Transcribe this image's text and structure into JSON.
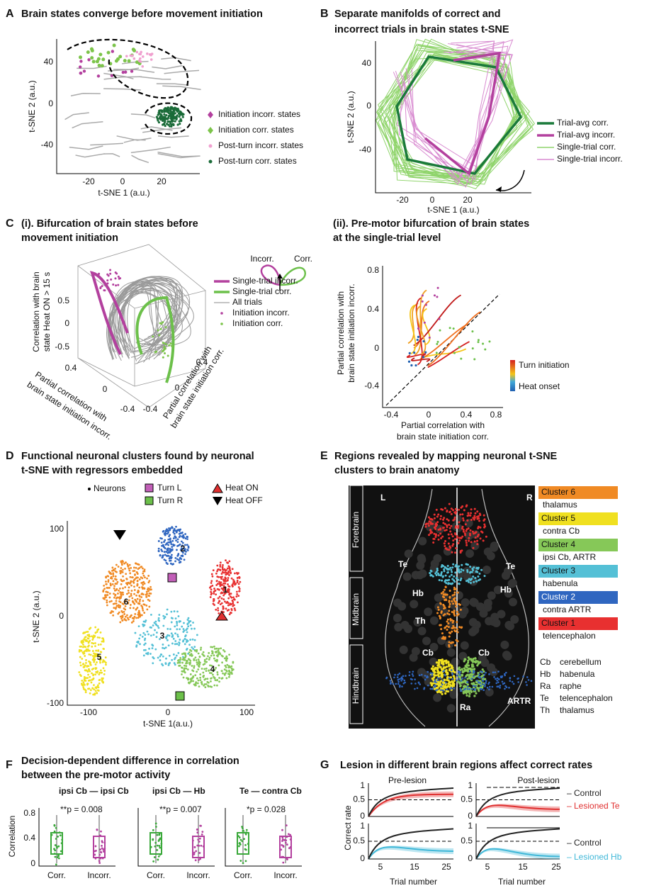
{
  "panel_a": {
    "letter": "A",
    "title": "Brain states converge before movement initiation",
    "y_label": "t-SNE 2 (a.u.)",
    "x_label": "t-SNE 1 (a.u.)",
    "yticks": [
      "40",
      "0",
      "-40"
    ],
    "xticks": [
      "-20",
      "0",
      "20"
    ],
    "legend": [
      "Initiation incorr. states",
      "Initiation corr. states",
      "Post-turn incorr. states",
      "Post-turn corr. states"
    ]
  },
  "panel_b": {
    "letter": "B",
    "title": [
      "Separate manifolds of correct and",
      "incorrect trials in brain states t-SNE"
    ],
    "y_label": "t-SNE 2 (a.u.)",
    "x_label": "t-SNE 1 (a.u.)",
    "yticks": [
      "40",
      "0",
      "-40"
    ],
    "xticks": [
      "-20",
      "0",
      "20"
    ],
    "legend": [
      "Trial-avg corr.",
      "Trial-avg incorr.",
      "Single-trial corr.",
      "Single-trial incorr."
    ]
  },
  "panel_c": {
    "letter": "C",
    "i_title": [
      "(i). Bifurcation of brain states before",
      "movement initiation"
    ],
    "z_label": [
      "Correlation with brain",
      "state Heat ON > 15 s"
    ],
    "zticks": [
      "0.5",
      "0",
      "-0.5"
    ],
    "left_label": [
      "Partial correlation with",
      "brain state initiation incorr."
    ],
    "left_ticks": [
      "0.4",
      "0",
      "-0.4"
    ],
    "right_label": [
      "Partial correlation with",
      "brain state initiation corr."
    ],
    "right_ticks": [
      "-0.4",
      "0",
      "0.4"
    ],
    "inset": [
      "Incorr.",
      "Corr."
    ],
    "legend": [
      "Single-trial incorr.",
      "Single-trial corr.",
      "All trials",
      "Initiation incorr.",
      "Initiation corr."
    ],
    "ii_title": [
      "(ii). Pre-motor bifurcation of brain states",
      "at the single-trial level"
    ],
    "ii_y_label": [
      "Partial correlation with",
      "brain state initiation incorr."
    ],
    "ii_x_label": [
      "Partial correlation with",
      "brain state initiation corr."
    ],
    "ii_yticks": [
      "0.8",
      "0.4",
      "0",
      "-0.4"
    ],
    "ii_xticks": [
      "-0.4",
      "0",
      "0.4",
      "0.8"
    ],
    "colorbar": [
      "Turn initiation",
      "Heat onset"
    ]
  },
  "panel_d": {
    "letter": "D",
    "title": [
      "Functional neuronal clusters found by neuronal",
      "t-SNE with regressors embedded"
    ],
    "legend": [
      "Neurons",
      "Turn L",
      "Turn R",
      "Heat ON",
      "Heat OFF"
    ],
    "y_label": "t-SNE 2 (a.u.)",
    "x_label": "t-SNE 1(a.u.)",
    "yticks": [
      "100",
      "0",
      "-100"
    ],
    "xticks": [
      "-100",
      "0",
      "100"
    ],
    "cluster_labels": [
      "1",
      "2",
      "3",
      "4",
      "5",
      "6"
    ]
  },
  "panel_e": {
    "letter": "E",
    "title": [
      "Regions revealed by mapping neuronal t-SNE",
      "clusters to brain anatomy"
    ],
    "region_bars": [
      "Forebrain",
      "Midbrain",
      "Hindbrain"
    ],
    "sides": [
      "L",
      "R"
    ],
    "image_labels": [
      "Te",
      "Te",
      "Hb",
      "Hb",
      "Th",
      "Cb",
      "Cb",
      "Ra",
      "ARTR"
    ],
    "clusters": [
      {
        "name": "Cluster 6",
        "region": "thalamus"
      },
      {
        "name": "Cluster 5",
        "region": "contra Cb"
      },
      {
        "name": "Cluster 4",
        "region": "ipsi Cb, ARTR"
      },
      {
        "name": "Cluster 3",
        "region": "habenula"
      },
      {
        "name": "Cluster 2",
        "region": "contra ARTR"
      },
      {
        "name": "Cluster 1",
        "region": "telencephalon"
      }
    ],
    "abbreviations": [
      {
        "abbr": "Cb",
        "full": "cerebellum"
      },
      {
        "abbr": "Hb",
        "full": "habenula"
      },
      {
        "abbr": "Ra",
        "full": "raphe"
      },
      {
        "abbr": "Te",
        "full": "telencephalon"
      },
      {
        "abbr": "Th",
        "full": "thalamus"
      }
    ]
  },
  "panel_f": {
    "letter": "F",
    "title": [
      "Decision-dependent difference in correlation",
      "between the pre-motor activity"
    ],
    "pairs": [
      "ipsi Cb — ipsi Cb",
      "ipsi Cb — Hb",
      "Te — contra Cb"
    ],
    "p_values": [
      "**p = 0.008",
      "**p = 0.007",
      "*p = 0.028"
    ],
    "y_label": "Correlation",
    "yticks": [
      "0.8",
      "0.4",
      "0"
    ],
    "x_labels": [
      "Corr.",
      "Incorr.",
      "Corr.",
      "Incorr.",
      "Corr.",
      "Incorr."
    ]
  },
  "panel_g": {
    "letter": "G",
    "title": "Lesion in different brain regions affect correct rates",
    "pre": "Pre-lesion",
    "post": "Post-lesion",
    "legend": [
      "– Control",
      "– Lesioned Te",
      "– Control",
      "– Lesioned Hb"
    ],
    "y_label": "Correct rate",
    "yticks": [
      "1",
      "0.5",
      "0"
    ],
    "xticks": [
      "5",
      "15",
      "25"
    ],
    "x_label": "Trial number"
  }
}
